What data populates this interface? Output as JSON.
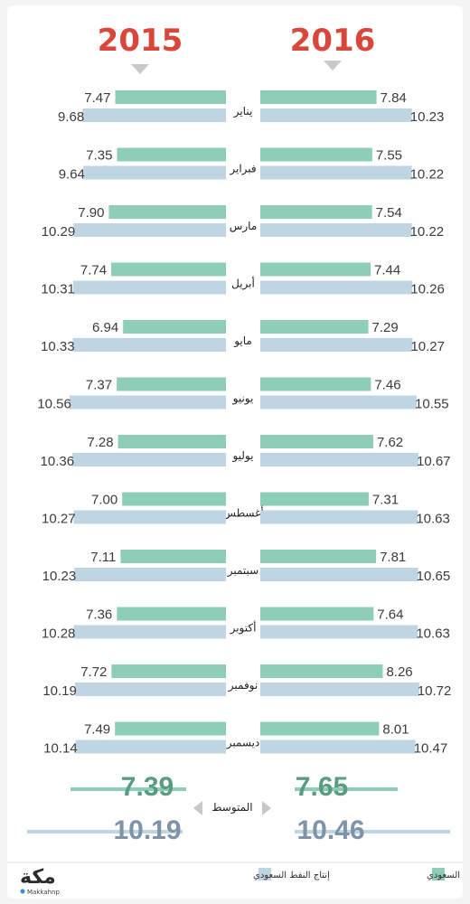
{
  "chart_data": {
    "type": "bar",
    "orientation": "horizontal",
    "groups": [
      {
        "year": "2016",
        "categories": [
          "يناير",
          "فبراير",
          "مارس",
          "أبريل",
          "مايو",
          "يونيو",
          "يوليو",
          "أغسطس",
          "سبتمبر",
          "أكتوبر",
          "نوفمبر",
          "ديسمبر"
        ],
        "series": [
          {
            "name": "صادرات النفط السعودي",
            "values_text": [
              "7.84",
              "7.55",
              "7.54",
              "7.44",
              "7.29",
              "7.46",
              "7.62",
              "7.31",
              "7.81",
              "7.64",
              "8.26",
              "8.01"
            ],
            "values": [
              7.84,
              7.55,
              7.54,
              7.44,
              7.29,
              7.46,
              7.62,
              7.31,
              7.81,
              7.64,
              8.26,
              8.01
            ]
          },
          {
            "name": "إنتاج النفط السعودي",
            "values_text": [
              "10.23",
              "10.22",
              "10.22",
              "10.26",
              "10.27",
              "10.55",
              "10.67",
              "10.63",
              "10.65",
              "10.63",
              "10.72",
              "10.47"
            ],
            "values": [
              10.23,
              10.22,
              10.22,
              10.26,
              10.27,
              10.55,
              10.67,
              10.63,
              10.65,
              10.63,
              10.72,
              10.47
            ]
          }
        ],
        "average": {
          "exports": "7.65",
          "production": "10.46"
        }
      },
      {
        "year": "2015",
        "categories": [
          "يناير",
          "فبراير",
          "مارس",
          "أبريل",
          "مايو",
          "يونيو",
          "يوليو",
          "أغسطس",
          "سبتمبر",
          "أكتوبر",
          "نوفمبر",
          "ديسمبر"
        ],
        "series": [
          {
            "name": "صادرات النفط السعودي",
            "values_text": [
              "7.47",
              "7.35",
              "7.90",
              "7.74",
              "6.94",
              "7.37",
              "7.28",
              "7.00",
              "7.11",
              "7.36",
              "7.72",
              "7.49"
            ],
            "values": [
              7.47,
              7.35,
              7.9,
              7.74,
              6.94,
              7.37,
              7.28,
              7.0,
              7.11,
              7.36,
              7.72,
              7.49
            ]
          },
          {
            "name": "إنتاج النفط السعودي",
            "values_text": [
              "9.68",
              "9.64",
              "10.29",
              "10.31",
              "10.33",
              "10.56",
              "10.36",
              "10.27",
              "10.23",
              "10.28",
              "10.19",
              "10.14"
            ],
            "values": [
              9.68,
              9.64,
              10.29,
              10.31,
              10.33,
              10.56,
              10.36,
              10.27,
              10.23,
              10.28,
              10.19,
              10.14
            ]
          }
        ],
        "average": {
          "exports": "7.39",
          "production": "10.19"
        }
      }
    ],
    "average_label": "المتوسط",
    "legend": [
      {
        "label": "صادرات النفط السعودي",
        "color": "#8ecdb7"
      },
      {
        "label": "إنتاج النفط السعودي",
        "color": "#bfd6e2"
      }
    ],
    "legend_position": "bottom",
    "colors": {
      "exports": "#8ecdb7",
      "production": "#bfd6e2",
      "year": "#d9473b",
      "avg_exports": "#5a9c82",
      "avg_production": "#7f93a8",
      "arrow": "#c8c8c8"
    }
  },
  "branding": {
    "logo": "مكة",
    "handle": "Makkahnp"
  }
}
